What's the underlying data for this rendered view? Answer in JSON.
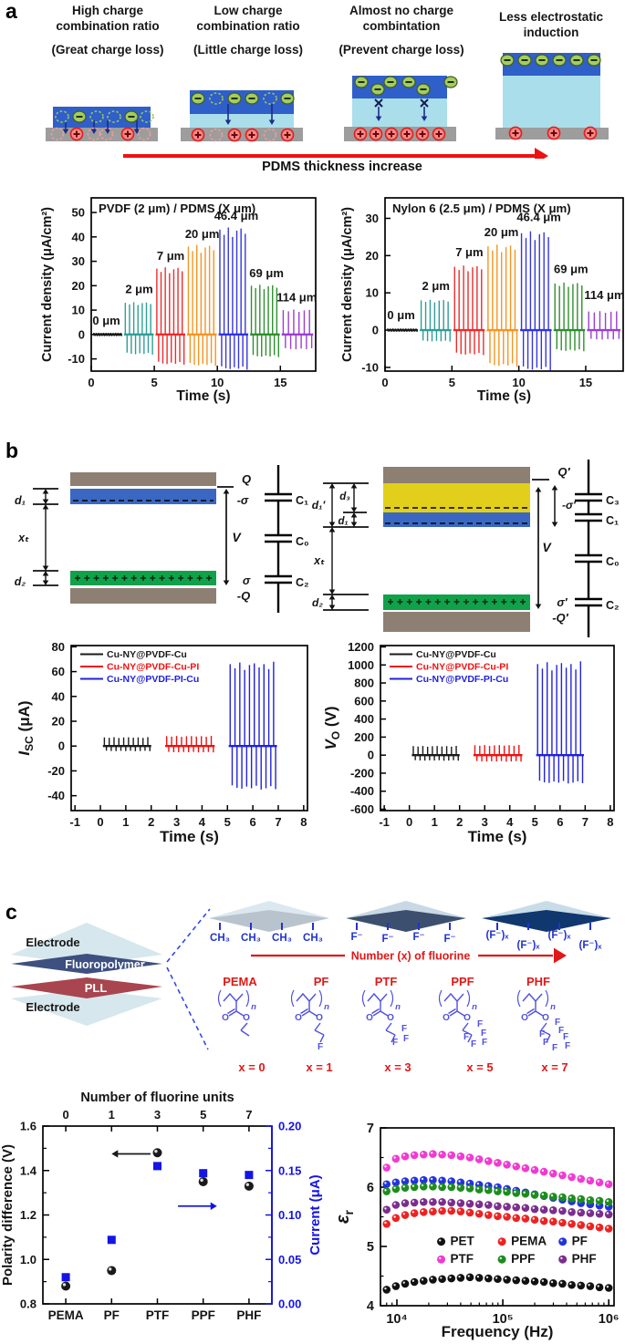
{
  "figure": {
    "panel_a": {
      "label": "a",
      "headers": [
        {
          "line1": "High charge",
          "line2": "combination ratio",
          "sub": "(Great charge loss)"
        },
        {
          "line1": "Low charge",
          "line2": "combination ratio",
          "sub": "(Little charge loss)"
        },
        {
          "line1": "Almost no charge",
          "line2": "combintation",
          "sub": "(Prevent charge loss)"
        },
        {
          "line1": "Less electrostatic",
          "line2": "induction",
          "sub": ""
        }
      ],
      "arrow_label": "PDMS thickness increase"
    },
    "panel_b": {
      "label": "b",
      "left_schematic": {
        "Q": "Q",
        "minus_sigma": "-σ",
        "V": "V",
        "sigma": "σ",
        "minus_Q": "-Q",
        "C1": "C₁",
        "C0": "C₀",
        "C2": "C₂",
        "d1": "d₁",
        "xt": "xₜ",
        "d2": "d₂"
      },
      "right_schematic": {
        "Q": "Q′",
        "minus_sigma": "-σ′",
        "V": "V",
        "sigma": "σ′",
        "minus_Q": "-Q′",
        "C3": "C₃",
        "C1": "C₁",
        "C0": "C₀",
        "C2": "C₂",
        "d1p": "d₁′",
        "d3": "d₃",
        "d1": "d₁",
        "xt": "xₜ",
        "d2": "d₂"
      }
    },
    "panel_c": {
      "label": "c",
      "device": {
        "electrode_top": "Electrode",
        "fluoropolymer": "Fluoropolymer",
        "pll": "PLL",
        "electrode_bottom": "Electrode"
      },
      "surface_groups": [
        {
          "unit": "CH₃",
          "count": 4
        },
        {
          "unit": "F⁻",
          "count": 4
        },
        {
          "unit": "(F⁻)ₓ",
          "count": 4
        }
      ],
      "arrow_label": "Number (x) of fluorine",
      "polymers": [
        {
          "name": "PEMA",
          "x_label": "x = 0",
          "f_count": 0
        },
        {
          "name": "PF",
          "x_label": "x = 1",
          "f_count": 1
        },
        {
          "name": "PTF",
          "x_label": "x = 3",
          "f_count": 3
        },
        {
          "name": "PPF",
          "x_label": "x = 5",
          "f_count": 5
        },
        {
          "name": "PHF",
          "x_label": "x = 7",
          "f_count": 7
        }
      ],
      "chem_letters": {
        "O": "O",
        "n": "n",
        "F": "F"
      }
    }
  },
  "chart_data": [
    {
      "id": "pvdf-pdms",
      "type": "spike",
      "title": "PVDF (2 μm) / PDMS (X μm)",
      "xlabel": "Time (s)",
      "ylabel": "Current density (μA/cm²)",
      "xlim": [
        0,
        17.8
      ],
      "ylim": [
        -15,
        56
      ],
      "xticks": [
        0,
        5,
        10,
        15
      ],
      "yticks": [
        -10,
        0,
        10,
        20,
        30,
        40,
        50
      ],
      "groups": [
        {
          "label": "0 μm",
          "color": "#1a1a1a",
          "start": 0.15,
          "end": 2.45,
          "n": 12,
          "peak": 0.7,
          "trough": -0.7,
          "label_x": 1.2,
          "label_y": 4
        },
        {
          "label": "2 μm",
          "color": "#2E9E96",
          "start": 2.6,
          "end": 4.95,
          "n": 7,
          "peak": 13,
          "trough": -8,
          "label_x": 3.8,
          "label_y": 17
        },
        {
          "label": "7 μm",
          "color": "#EE2B2B",
          "start": 5.1,
          "end": 7.45,
          "n": 7,
          "peak": 27,
          "trough": -12,
          "label_x": 6.3,
          "label_y": 30.5
        },
        {
          "label": "20 μm",
          "color": "#F79420",
          "start": 7.6,
          "end": 9.95,
          "n": 7,
          "peak": 36,
          "trough": -12.5,
          "label_x": 8.8,
          "label_y": 39.5
        },
        {
          "label": "46.4 μm",
          "color": "#3434E0",
          "start": 10.1,
          "end": 12.45,
          "n": 7,
          "peak": 43,
          "trough": -14,
          "label_x": 11.5,
          "label_y": 47
        },
        {
          "label": "69 μm",
          "color": "#2E8F2E",
          "start": 12.6,
          "end": 14.95,
          "n": 7,
          "peak": 20,
          "trough": -9,
          "label_x": 13.9,
          "label_y": 23.5
        },
        {
          "label": "114 μm",
          "color": "#9B3FD1",
          "start": 15.1,
          "end": 17.6,
          "n": 6,
          "peak": 10,
          "trough": -6,
          "label_x": 16.3,
          "label_y": 13.5
        }
      ]
    },
    {
      "id": "nylon-pdms",
      "type": "spike",
      "title": "Nylon 6 (2.5 μm) / PDMS (X μm)",
      "xlabel": "Time (s)",
      "ylabel": "Current density (μA/cm²)",
      "xlim": [
        0,
        17.8
      ],
      "ylim": [
        -11,
        35.5
      ],
      "xticks": [
        0,
        5,
        10,
        15
      ],
      "yticks": [
        -10,
        0,
        10,
        20,
        30
      ],
      "groups": [
        {
          "label": "0 μm",
          "color": "#1a1a1a",
          "start": 0.15,
          "end": 2.45,
          "n": 12,
          "peak": 0.45,
          "trough": -0.45,
          "label_x": 1.2,
          "label_y": 3
        },
        {
          "label": "2 μm",
          "color": "#2E9E96",
          "start": 2.6,
          "end": 4.95,
          "n": 7,
          "peak": 8,
          "trough": -3,
          "label_x": 3.8,
          "label_y": 10.8
        },
        {
          "label": "7 μm",
          "color": "#EE2B2B",
          "start": 5.1,
          "end": 7.45,
          "n": 7,
          "peak": 17,
          "trough": -6.5,
          "label_x": 6.3,
          "label_y": 19.8
        },
        {
          "label": "20 μm",
          "color": "#F79420",
          "start": 7.6,
          "end": 9.95,
          "n": 7,
          "peak": 22.5,
          "trough": -9.5,
          "label_x": 8.7,
          "label_y": 25.2
        },
        {
          "label": "46.4 μm",
          "color": "#3434E0",
          "start": 10.1,
          "end": 12.45,
          "n": 7,
          "peak": 26,
          "trough": -10.5,
          "label_x": 11.5,
          "label_y": 29.3
        },
        {
          "label": "69 μm",
          "color": "#2E8F2E",
          "start": 12.6,
          "end": 14.95,
          "n": 7,
          "peak": 12.5,
          "trough": -5.5,
          "label_x": 13.9,
          "label_y": 15.3
        },
        {
          "label": "114 μm",
          "color": "#9B3FD1",
          "start": 15.1,
          "end": 17.6,
          "n": 6,
          "peak": 5,
          "trough": -2.5,
          "label_x": 16.4,
          "label_y": 8.3
        }
      ]
    },
    {
      "id": "isc",
      "type": "spike",
      "title": "",
      "xlabel": "Time (s)",
      "ylabel": {
        "base": "I",
        "sub": "SC",
        "rest": " (μA)",
        "italic": true
      },
      "xlim": [
        -1.15,
        8.15
      ],
      "ylim": [
        -52,
        81
      ],
      "xticks": [
        -1,
        0,
        1,
        2,
        3,
        4,
        5,
        6,
        7,
        8
      ],
      "yticks": [
        -40,
        -20,
        0,
        20,
        40,
        60,
        80
      ],
      "legend": [
        {
          "label": "Cu-NY@PVDF-Cu",
          "color": "#1a1a1a"
        },
        {
          "label": "Cu-NY@PVDF-Cu-PI",
          "color": "#EE1111"
        },
        {
          "label": "Cu-NY@PVDF-PI-Cu",
          "color": "#2121DE"
        }
      ],
      "groups": [
        {
          "color": "#1a1a1a",
          "start": 0.1,
          "end": 2.0,
          "n": 10,
          "peak": 7,
          "trough": -4
        },
        {
          "color": "#EE1111",
          "start": 2.55,
          "end": 4.5,
          "n": 10,
          "peak": 8,
          "trough": -5
        },
        {
          "color": "#2121DE",
          "start": 5.05,
          "end": 6.95,
          "n": 10,
          "peak": 66,
          "trough": -34
        }
      ]
    },
    {
      "id": "vo",
      "type": "spike",
      "title": "",
      "xlabel": "Time (s)",
      "ylabel": {
        "base": "V",
        "sub": "O",
        "rest": " (V)",
        "italic": true
      },
      "xlim": [
        -1.15,
        8.15
      ],
      "ylim": [
        -615,
        1215
      ],
      "xticks": [
        -1,
        0,
        1,
        2,
        3,
        4,
        5,
        6,
        7,
        8
      ],
      "yticks": [
        -600,
        -400,
        -200,
        0,
        200,
        400,
        600,
        800,
        1000,
        1200
      ],
      "legend": [
        {
          "label": "Cu-NY@PVDF-Cu",
          "color": "#1a1a1a"
        },
        {
          "label": "Cu-NY@PVDF-Cu-PI",
          "color": "#EE1111"
        },
        {
          "label": "Cu-NY@PVDF-PI-Cu",
          "color": "#2121DE"
        }
      ],
      "groups": [
        {
          "color": "#1a1a1a",
          "start": 0.1,
          "end": 2.0,
          "n": 10,
          "peak": 100,
          "trough": -60
        },
        {
          "color": "#EE1111",
          "start": 2.55,
          "end": 4.5,
          "n": 10,
          "peak": 110,
          "trough": -70
        },
        {
          "color": "#2121DE",
          "start": 5.05,
          "end": 6.95,
          "n": 10,
          "peak": 1010,
          "trough": -305
        }
      ]
    },
    {
      "id": "polarity-current",
      "type": "scatter-dual",
      "top_title": "Number of fluorine units",
      "top_ticks": [
        "0",
        "1",
        "3",
        "5",
        "7"
      ],
      "categories": [
        "PEMA",
        "PF",
        "PTF",
        "PPF",
        "PHF"
      ],
      "ylabel_left": "Polarity difference (V)",
      "ylabel_right": "Current (μA)",
      "ylim_left": [
        0.8,
        1.6
      ],
      "yticks_left": [
        0.8,
        1.0,
        1.2,
        1.4,
        1.6
      ],
      "ytick_labels_left": [
        "0.8",
        "1.0",
        "1.2",
        "1.4",
        "1.6"
      ],
      "ylim_right": [
        0.0,
        0.2
      ],
      "yticks_right": [
        0.0,
        0.05,
        0.1,
        0.15,
        0.2
      ],
      "ytick_labels_right": [
        "0.00",
        "0.05",
        "0.10",
        "0.15",
        "0.20"
      ],
      "accent": "#1414E6",
      "series": [
        {
          "name": "Polarity difference",
          "axis": "left",
          "marker": "circle",
          "color": "#1a1a1a",
          "values": [
            0.88,
            0.95,
            1.48,
            1.35,
            1.33
          ]
        },
        {
          "name": "Current",
          "axis": "right",
          "marker": "square",
          "color": "#1414E6",
          "values": [
            0.03,
            0.072,
            0.155,
            0.147,
            0.145
          ]
        }
      ],
      "annotations": [
        {
          "dir": "left",
          "x_frac": 0.47,
          "y": 1.475,
          "len": 0.17,
          "color": "#1a1a1a"
        },
        {
          "dir": "right",
          "x_frac": 0.59,
          "y": 1.24,
          "len": 0.17,
          "color": "#1414E6"
        }
      ]
    },
    {
      "id": "permittivity",
      "type": "scatter-log",
      "xlabel": "Frequency (Hz)",
      "ylabel": {
        "base": "ε",
        "sub": "r",
        "rest": "",
        "italic": true
      },
      "xlim_log": [
        3.845,
        6.05
      ],
      "xticks": [
        {
          "v": 4,
          "label": "10⁴"
        },
        {
          "v": 5,
          "label": "10⁵"
        },
        {
          "v": 6,
          "label": "10⁶"
        }
      ],
      "ylim": [
        4,
        7
      ],
      "yticks": [
        4,
        5,
        6,
        7
      ],
      "x_log_start": 3.903,
      "x_log_end": 6.0,
      "series": [
        {
          "name": "PET",
          "color": "#111111",
          "values": [
            4.27,
            4.33,
            4.37,
            4.4,
            4.42,
            4.44,
            4.45,
            4.46,
            4.47,
            4.48,
            4.47,
            4.46,
            4.45,
            4.44,
            4.43,
            4.42,
            4.41,
            4.4,
            4.38,
            4.37,
            4.35,
            4.34,
            4.33,
            4.31,
            4.3
          ]
        },
        {
          "name": "PEMA",
          "color": "#EE2222",
          "values": [
            5.38,
            5.48,
            5.53,
            5.56,
            5.58,
            5.59,
            5.6,
            5.6,
            5.59,
            5.57,
            5.55,
            5.53,
            5.51,
            5.5,
            5.48,
            5.47,
            5.45,
            5.43,
            5.42,
            5.4,
            5.38,
            5.36,
            5.34,
            5.32,
            5.3
          ]
        },
        {
          "name": "PF",
          "color": "#2233DD",
          "values": [
            6.05,
            6.08,
            6.1,
            6.11,
            6.12,
            6.12,
            6.11,
            6.1,
            6.08,
            6.06,
            6.04,
            6.02,
            6.0,
            5.97,
            5.94,
            5.91,
            5.88,
            5.85,
            5.82,
            5.79,
            5.76,
            5.73,
            5.71,
            5.69,
            5.67
          ]
        },
        {
          "name": "PTF",
          "color": "#F03AD2",
          "values": [
            6.33,
            6.48,
            6.52,
            6.54,
            6.55,
            6.56,
            6.55,
            6.54,
            6.52,
            6.5,
            6.47,
            6.44,
            6.41,
            6.38,
            6.35,
            6.32,
            6.29,
            6.26,
            6.23,
            6.2,
            6.17,
            6.14,
            6.11,
            6.08,
            6.05
          ]
        },
        {
          "name": "PPF",
          "color": "#1E8C1E",
          "values": [
            5.93,
            5.97,
            5.99,
            6.0,
            6.01,
            6.01,
            6.0,
            6.0,
            5.99,
            5.98,
            5.96,
            5.95,
            5.93,
            5.92,
            5.9,
            5.89,
            5.87,
            5.86,
            5.84,
            5.83,
            5.81,
            5.8,
            5.78,
            5.77,
            5.75
          ]
        },
        {
          "name": "PHF",
          "color": "#7B2E8E",
          "values": [
            5.62,
            5.7,
            5.73,
            5.74,
            5.75,
            5.75,
            5.75,
            5.74,
            5.73,
            5.72,
            5.71,
            5.7,
            5.68,
            5.67,
            5.66,
            5.65,
            5.63,
            5.62,
            5.61,
            5.6,
            5.58,
            5.57,
            5.56,
            5.55,
            5.54
          ]
        }
      ],
      "legend_rows": [
        [
          "PET",
          "PEMA",
          "PF"
        ],
        [
          "PTF",
          "PPF",
          "PHF"
        ]
      ]
    }
  ]
}
